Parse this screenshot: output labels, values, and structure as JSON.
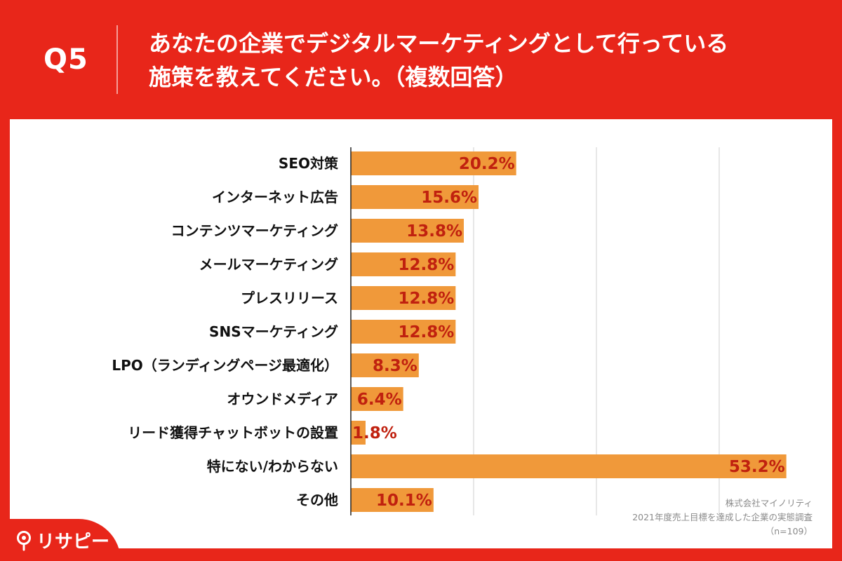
{
  "header": {
    "question_number": "Q5",
    "title_line1": "あなたの企業でデジタルマーケティングとして行っている",
    "title_line2": "施策を教えてください。（複数回答）"
  },
  "colors": {
    "background": "#e8261a",
    "bar": "#f0993a",
    "value_label": "#c0210f",
    "axis_label": "#111111"
  },
  "chart_data": {
    "type": "bar",
    "orientation": "horizontal",
    "title": "",
    "xlabel": "",
    "ylabel": "",
    "xlim": [
      0,
      60
    ],
    "grid": true,
    "categories": [
      "SEO対策",
      "インターネット広告",
      "コンテンツマーケティング",
      "メールマーケティング",
      "プレスリリース",
      "SNSマーケティング",
      "LPO（ランディングページ最適化）",
      "オウンドメディア",
      "リード獲得チャットボットの設置",
      "特にない/わからない",
      "その他"
    ],
    "values": [
      20.2,
      15.6,
      13.8,
      12.8,
      12.8,
      12.8,
      8.3,
      6.4,
      1.8,
      53.2,
      10.1
    ],
    "value_labels": [
      "20.2%",
      "15.6%",
      "13.8%",
      "12.8%",
      "12.8%",
      "12.8%",
      "8.3%",
      "6.4%",
      "1.8%",
      "53.2%",
      "10.1%"
    ]
  },
  "footer": {
    "company": "株式会社マイノリティ",
    "survey": "2021年度売上目標を達成した企業の実態調査",
    "sample": "（n=109）"
  },
  "logo": {
    "text": "リサピー",
    "icon": "pin-icon"
  }
}
